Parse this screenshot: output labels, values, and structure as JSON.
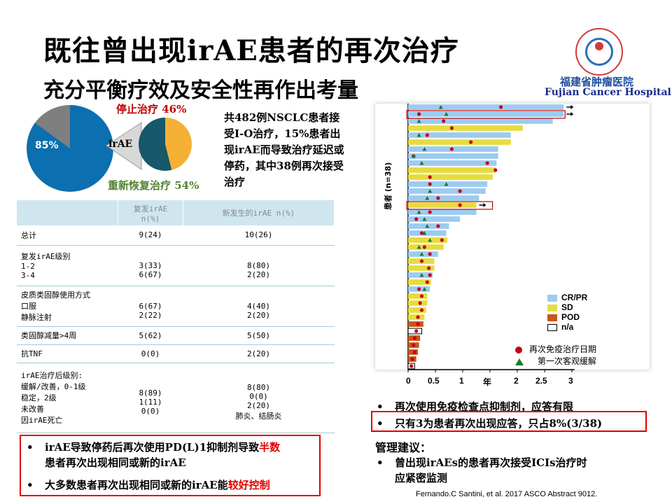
{
  "header": {
    "title": "既往曾出现irAE患者的再次治疗",
    "subtitle": "充分平衡疗效及安全性再作出考量"
  },
  "hospital": {
    "name_cn": "福建省肿瘤医院",
    "name_en": "Fujian Cancer Hospital",
    "logo_icon": "hospital-logo-icon"
  },
  "pies": {
    "big_percent": "85%",
    "irae_label": "irAE",
    "stop_label": "停止治疗 46%",
    "resume_label": "重新恢复治疗 54%",
    "big_values": [
      85,
      15
    ],
    "small_values": [
      46,
      54
    ]
  },
  "intro_text": "共482例NSCLC患者接受I-O治疗，15%患者出现irAE而导致治疗延迟或停药，其中38例再次接受治疗",
  "table": {
    "headers": [
      "",
      "复发irAE n(%)",
      "新发生的irAE n(%)"
    ],
    "rows": [
      {
        "label": "总计",
        "a": "9(24)",
        "b": "10(26)"
      },
      {
        "label": "复发irAE级别\n  1-2\n  3-4",
        "a": "\n3(33)\n6(67)",
        "b": "\n8(80)\n2(20)"
      },
      {
        "label": "皮质类固醇使用方式\n  口服\n  静脉注射",
        "a": "\n6(67)\n2(22)",
        "b": "\n4(40)\n2(20)"
      },
      {
        "label": "类固醇减量>4周",
        "a": "5(62)",
        "b": "5(50)"
      },
      {
        "label": "抗TNF",
        "a": "0(0)",
        "b": "2(20)"
      },
      {
        "label": "irAE治疗后级别:\n  缓解/改善，0-1级\n  稳定，2级\n  未改善\n  因irAE死亡",
        "a": "\n8(89)\n1(11)\n0(0)\n",
        "b": "\n8(80)\n0(0)\n2(20)\n",
        "note": "肺炎、结肠炎"
      }
    ]
  },
  "left_bullets": {
    "b1_pre": "irAE导致停药后再次使用PD(L)1抑制剂导致",
    "b1_red": "半数",
    "b1_line2": "患者再次出现相同或新的irAE",
    "b2_pre": "大多数患者再次出现相同或新的irAE能",
    "b2_red": "较好控制"
  },
  "right_bullets": {
    "b1": "再次使用免疫检查点抑制剂，应答有限",
    "b2": "只有3为患者再次出现应答，只占8%(3/38)",
    "mgmt_title": "管理建议：",
    "mgmt_line1": "曾出现irAEs的患者再次接受ICIs治疗时",
    "mgmt_line2": "应紧密监测"
  },
  "reference": "Fernando.C Santini, et al. 2017 ASCO Abstract 9012.",
  "chart_labels": {
    "ylabel": "患者 (n=38)",
    "xticks": [
      "0",
      "0.5",
      "1",
      "年",
      "2",
      "2.5",
      "3"
    ],
    "legend": [
      {
        "label": "CR/PR",
        "color": "#9dcbf0"
      },
      {
        "label": "SD",
        "color": "#e6dc40"
      },
      {
        "label": "POD",
        "color": "#c8561a"
      },
      {
        "label": "n/a",
        "color": "#ffffff"
      }
    ],
    "marker_legend": [
      {
        "label": "再次免疫治疗日期",
        "icon": "red-dot-icon"
      },
      {
        "label": "第一次客观缓解",
        "icon": "green-triangle-icon"
      }
    ]
  },
  "chart_data": {
    "type": "bar",
    "orientation": "horizontal",
    "ylabel": "患者 (n=38)",
    "xlim": [
      0,
      3.2
    ],
    "xticks": [
      "0",
      "0.5",
      "1",
      "年",
      "2",
      "2.5",
      "3"
    ],
    "colors": {
      "CR/PR": "#9dcbf0",
      "SD": "#e6dc40",
      "POD": "#c8561a"
    },
    "patients": [
      {
        "dur": 2.85,
        "resp": "CR/PR",
        "dot": 1.7,
        "tri": 0.6,
        "arrow": true
      },
      {
        "dur": 2.85,
        "resp": "CR/PR",
        "dot": 0.2,
        "tri": 0.7,
        "arrow": true
      },
      {
        "dur": 2.65,
        "resp": "CR/PR",
        "dot": 0.65,
        "tri": 0.2
      },
      {
        "dur": 2.1,
        "resp": "SD",
        "dot": 0.8,
        "tri": null
      },
      {
        "dur": 1.88,
        "resp": "CR/PR",
        "dot": 0.35,
        "tri": 0.2
      },
      {
        "dur": 1.88,
        "resp": "SD",
        "dot": 1.15,
        "tri": null
      },
      {
        "dur": 1.65,
        "resp": "CR/PR",
        "dot": 0.8,
        "tri": 0.3
      },
      {
        "dur": 1.65,
        "resp": "CR/PR",
        "dot": 0.1,
        "tri": 0.1
      },
      {
        "dur": 1.62,
        "resp": "CR/PR",
        "dot": 1.45,
        "tri": 0.25
      },
      {
        "dur": 1.6,
        "resp": "SD",
        "dot": 1.6,
        "tri": null
      },
      {
        "dur": 1.55,
        "resp": "SD",
        "dot": 0.4,
        "tri": null
      },
      {
        "dur": 1.45,
        "resp": "CR/PR",
        "dot": 0.4,
        "tri": 0.7
      },
      {
        "dur": 1.42,
        "resp": "CR/PR",
        "dot": 0.95,
        "tri": 0.4
      },
      {
        "dur": 1.3,
        "resp": "CR/PR",
        "dot": 0.55,
        "tri": 0.35
      },
      {
        "dur": 1.25,
        "resp": "SD",
        "dot": 0.95,
        "tri": null,
        "arrow": true
      },
      {
        "dur": 1.25,
        "resp": "CR/PR",
        "dot": 0.4,
        "tri": 0.2
      },
      {
        "dur": 0.95,
        "resp": "CR/PR",
        "dot": 0.15,
        "tri": 0.3
      },
      {
        "dur": 0.75,
        "resp": "CR/PR",
        "dot": 0.55,
        "tri": 0.35
      },
      {
        "dur": 0.7,
        "resp": "CR/PR",
        "dot": 0.25,
        "tri": 0.3
      },
      {
        "dur": 0.72,
        "resp": "SD",
        "dot": 0.62,
        "tri": 0.4
      },
      {
        "dur": 0.65,
        "resp": "SD",
        "dot": 0.3,
        "tri": 0.2
      },
      {
        "dur": 0.55,
        "resp": "CR/PR",
        "dot": 0.4,
        "tri": 0.25
      },
      {
        "dur": 0.48,
        "resp": "SD",
        "dot": 0.25,
        "tri": null
      },
      {
        "dur": 0.48,
        "resp": "SD",
        "dot": 0.38,
        "tri": null
      },
      {
        "dur": 0.45,
        "resp": "CR/PR",
        "dot": 0.4,
        "tri": 0.25
      },
      {
        "dur": 0.42,
        "resp": "SD",
        "dot": 0.35,
        "tri": null
      },
      {
        "dur": 0.4,
        "resp": "CR/PR",
        "dot": 0.2,
        "tri": 0.3
      },
      {
        "dur": 0.35,
        "resp": "SD",
        "dot": 0.25,
        "tri": null
      },
      {
        "dur": 0.35,
        "resp": "SD",
        "dot": 0.22,
        "tri": null
      },
      {
        "dur": 0.33,
        "resp": "SD",
        "dot": 0.25,
        "tri": null
      },
      {
        "dur": 0.3,
        "resp": "SD",
        "dot": 0.18,
        "tri": null
      },
      {
        "dur": 0.28,
        "resp": "POD",
        "dot": 0.18,
        "tri": null
      },
      {
        "dur": 0.25,
        "resp": "n/a",
        "dot": 0.15,
        "tri": null
      },
      {
        "dur": 0.22,
        "resp": "POD",
        "dot": 0.12,
        "tri": null
      },
      {
        "dur": 0.2,
        "resp": "POD",
        "dot": 0.1,
        "tri": null
      },
      {
        "dur": 0.18,
        "resp": "POD",
        "dot": 0.12,
        "tri": null
      },
      {
        "dur": 0.15,
        "resp": "POD",
        "dot": 0.08,
        "tri": null
      },
      {
        "dur": 0.12,
        "resp": "n/a",
        "dot": 0.06,
        "tri": null
      }
    ],
    "highlighted_patients": [
      2,
      15
    ]
  }
}
